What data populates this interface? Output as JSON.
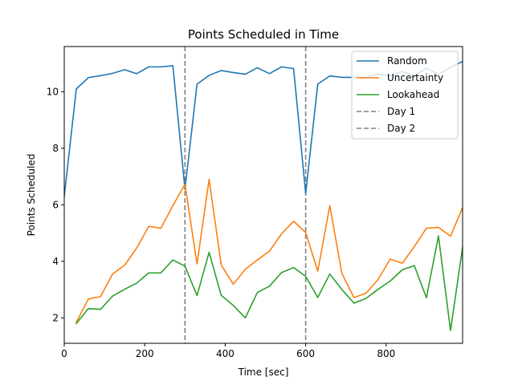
{
  "chart_data": {
    "type": "line",
    "title": "Points Scheduled in Time",
    "xlabel": "Time [sec]",
    "ylabel": "Points Scheduled",
    "xlim": [
      0,
      990
    ],
    "ylim": [
      1.1,
      11.6
    ],
    "x_ticks": [
      0,
      200,
      400,
      600,
      800
    ],
    "y_ticks": [
      2,
      4,
      6,
      8,
      10
    ],
    "grid": false,
    "legend_position": "top-right",
    "x": [
      0,
      30,
      60,
      90,
      120,
      150,
      180,
      210,
      240,
      270,
      300,
      330,
      360,
      390,
      420,
      450,
      480,
      510,
      540,
      570,
      600,
      630,
      660,
      690,
      720,
      750,
      780,
      810,
      840,
      870,
      900,
      930,
      960,
      990
    ],
    "series": [
      {
        "name": "Random",
        "color": "#1f77b4",
        "values": [
          6.3,
          10.1,
          10.5,
          10.57,
          10.65,
          10.78,
          10.64,
          10.88,
          10.88,
          10.92,
          6.55,
          10.27,
          10.58,
          10.75,
          10.68,
          10.62,
          10.85,
          10.64,
          10.88,
          10.82,
          6.4,
          10.27,
          10.56,
          10.51,
          10.51,
          10.51,
          10.63,
          10.56,
          10.72,
          10.55,
          10.84,
          10.62,
          10.87,
          11.07
        ]
      },
      {
        "name": "Uncertainty",
        "color": "#ff7f0e",
        "values": [
          null,
          1.85,
          2.67,
          2.75,
          3.55,
          3.86,
          4.47,
          5.24,
          5.17,
          5.97,
          6.73,
          3.91,
          6.9,
          3.88,
          3.19,
          3.72,
          4.05,
          4.36,
          4.97,
          5.42,
          5.02,
          3.65,
          5.97,
          3.57,
          2.72,
          2.87,
          3.36,
          4.08,
          3.93,
          4.52,
          5.17,
          5.2,
          4.89,
          5.9
        ]
      },
      {
        "name": "Lookahead",
        "color": "#2ca02c",
        "values": [
          null,
          1.8,
          2.33,
          2.3,
          2.77,
          3.01,
          3.23,
          3.59,
          3.59,
          4.05,
          3.83,
          2.79,
          4.32,
          2.8,
          2.44,
          2.0,
          2.9,
          3.12,
          3.6,
          3.78,
          3.47,
          2.72,
          3.55,
          3.0,
          2.52,
          2.69,
          3.01,
          3.3,
          3.7,
          3.85,
          2.71,
          4.9,
          1.55,
          4.5
        ]
      }
    ],
    "vlines": [
      {
        "name": "Day 1",
        "x": 300,
        "color": "#808080",
        "style": "dashed"
      },
      {
        "name": "Day 2",
        "x": 600,
        "color": "#808080",
        "style": "dashed"
      }
    ]
  }
}
